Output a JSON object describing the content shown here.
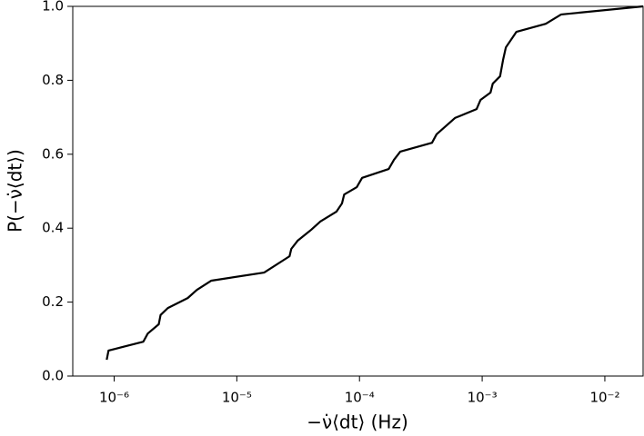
{
  "chart_data": {
    "type": "line",
    "xlabel": "−ν̇⟨dt⟩ (Hz)",
    "ylabel": "P(−ν̇⟨dt⟩)",
    "xscale": "log",
    "xlim": [
      4.6e-07,
      0.0205
    ],
    "ylim": [
      0,
      1
    ],
    "xticks": [
      {
        "value": 1e-06,
        "label": "10⁻⁶"
      },
      {
        "value": 1e-05,
        "label": "10⁻⁵"
      },
      {
        "value": 0.0001,
        "label": "10⁻⁴"
      },
      {
        "value": 0.001,
        "label": "10⁻³"
      },
      {
        "value": 0.01,
        "label": "10⁻²"
      }
    ],
    "yticks": [
      {
        "value": 0,
        "label": "0.0"
      },
      {
        "value": 0.2,
        "label": "0.2"
      },
      {
        "value": 0.4,
        "label": "0.4"
      },
      {
        "value": 0.6,
        "label": "0.6"
      },
      {
        "value": 0.8,
        "label": "0.8"
      },
      {
        "value": 1,
        "label": "1.0"
      }
    ],
    "series": [
      {
        "color": "#000000",
        "x": [
          8.7e-07,
          9e-07,
          1.73e-06,
          1.88e-06,
          2.31e-06,
          2.39e-06,
          2.74e-06,
          3.98e-06,
          4.72e-06,
          6.2e-06,
          1.67e-05,
          2.69e-05,
          2.78e-05,
          3.13e-05,
          4.05e-05,
          4.8e-05,
          6.5e-05,
          7.2e-05,
          7.5e-05,
          9.5e-05,
          0.000105,
          0.000173,
          0.000191,
          0.000215,
          0.00039,
          0.000425,
          0.0006,
          0.0009,
          0.00097,
          0.00117,
          0.00122,
          0.0014,
          0.00148,
          0.00156,
          0.0019,
          0.0033,
          0.0044,
          0.0205
        ],
        "values": [
          0.044,
          0.069,
          0.093,
          0.115,
          0.14,
          0.165,
          0.184,
          0.211,
          0.233,
          0.258,
          0.28,
          0.324,
          0.344,
          0.366,
          0.396,
          0.418,
          0.445,
          0.467,
          0.491,
          0.511,
          0.536,
          0.56,
          0.585,
          0.607,
          0.631,
          0.654,
          0.698,
          0.722,
          0.747,
          0.767,
          0.791,
          0.811,
          0.855,
          0.889,
          0.931,
          0.953,
          0.978,
          1.0
        ]
      }
    ]
  }
}
